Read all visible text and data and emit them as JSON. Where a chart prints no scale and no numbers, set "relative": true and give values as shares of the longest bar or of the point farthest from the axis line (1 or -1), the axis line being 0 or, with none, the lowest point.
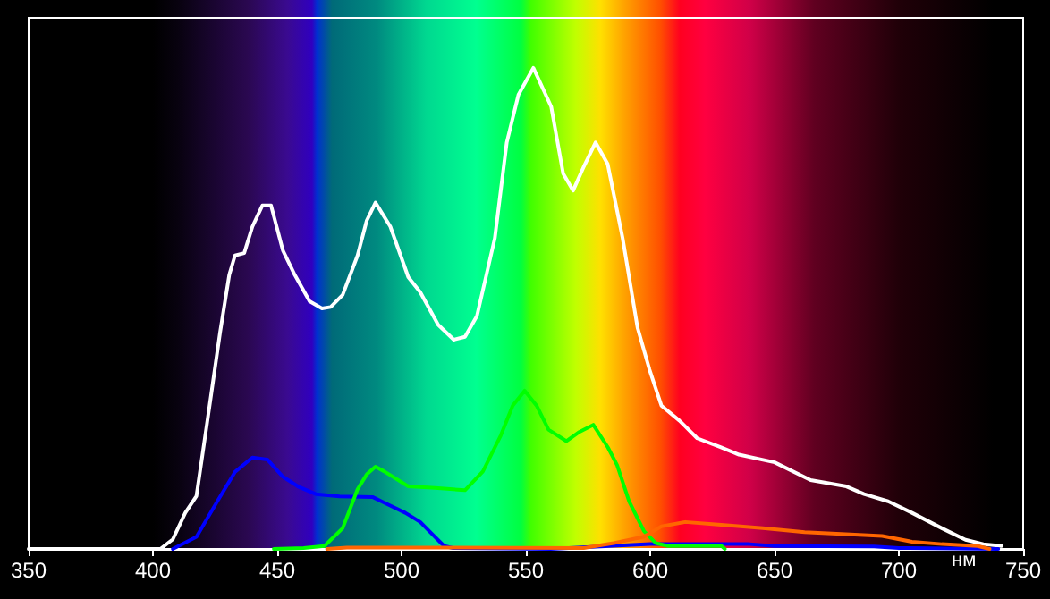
{
  "chart_data": {
    "type": "line",
    "relative": true,
    "xlabel": "нм",
    "xlim": [
      350,
      750
    ],
    "xticks": [
      350,
      400,
      450,
      500,
      550,
      600,
      650,
      700,
      750
    ],
    "tick_labels": "x",
    "marker": "none",
    "line_style": "solid",
    "series": [
      {
        "color": "#ffffff",
        "x": [
          350,
          403,
          408,
          413,
          417.5,
          422,
          427,
          430.7,
          433,
          436.7,
          440,
          444,
          447.5,
          452.3,
          457,
          463,
          468,
          471.5,
          476.3,
          482.3,
          486,
          489.5,
          495.5,
          502.7,
          507.5,
          514.7,
          521,
          525.5,
          530.3,
          537.5,
          542.3,
          547,
          553,
          560.2,
          565,
          569,
          573.3,
          578,
          582.9,
          588.9,
          594.9,
          599.7,
          604.5,
          611.7,
          618.9,
          628.5,
          635.7,
          650,
          664.5,
          678.9,
          686,
          695.7,
          705.3,
          717.3,
          726.8,
          734,
          741.3
        ],
        "values": [
          0,
          0,
          0.02,
          0.075,
          0.11,
          0.27,
          0.45,
          0.57,
          0.61,
          0.615,
          0.67,
          0.714,
          0.714,
          0.62,
          0.57,
          0.515,
          0.5,
          0.503,
          0.528,
          0.61,
          0.683,
          0.72,
          0.67,
          0.565,
          0.534,
          0.466,
          0.435,
          0.441,
          0.484,
          0.646,
          0.845,
          0.944,
          1,
          0.919,
          0.78,
          0.745,
          0.795,
          0.845,
          0.8,
          0.646,
          0.46,
          0.373,
          0.298,
          0.267,
          0.23,
          0.211,
          0.196,
          0.18,
          0.143,
          0.13,
          0.114,
          0.099,
          0.075,
          0.043,
          0.019,
          0.01,
          0.006
        ]
      },
      {
        "color": "#0000ff",
        "x": [
          408,
          417.5,
          426,
          433,
          440,
          446,
          452.3,
          458.3,
          465.5,
          475.1,
          488.3,
          494.3,
          501.5,
          507.5,
          512.3,
          517.1,
          520.7,
          560,
          600,
          640,
          650,
          690,
          700,
          740
        ],
        "values": [
          0,
          0.025,
          0.1,
          0.16,
          0.19,
          0.186,
          0.15,
          0.13,
          0.114,
          0.109,
          0.108,
          0.093,
          0.075,
          0.056,
          0.031,
          0.006,
          0.002,
          0,
          0.01,
          0.01,
          0.006,
          0.005,
          0.002,
          0
        ]
      },
      {
        "color": "#00ff00",
        "x": [
          448.6,
          460.6,
          469,
          476.3,
          482.3,
          486,
          489.5,
          493.1,
          502.7,
          513.5,
          525.5,
          532.7,
          539.9,
          544.7,
          549.5,
          554.3,
          559.1,
          566.3,
          571.1,
          577.1,
          583,
          586.7,
          591.5,
          597.5,
          602.3,
          607.1,
          628.7,
          630
        ],
        "values": [
          0,
          0.002,
          0.006,
          0.043,
          0.124,
          0.155,
          0.171,
          0.161,
          0.13,
          0.127,
          0.122,
          0.161,
          0.236,
          0.298,
          0.329,
          0.298,
          0.248,
          0.224,
          0.242,
          0.258,
          0.211,
          0.174,
          0.099,
          0.037,
          0.012,
          0.006,
          0.006,
          0
        ]
      },
      {
        "color": "#ff6600",
        "x": [
          470,
          478,
          500,
          573.2,
          585.3,
          597.3,
          604.5,
          614.1,
          628.5,
          645.3,
          662.1,
          693.3,
          705.3,
          717.3,
          731.7,
          736.5
        ],
        "values": [
          0,
          0.003,
          0.003,
          0.002,
          0.012,
          0.025,
          0.047,
          0.056,
          0.05,
          0.043,
          0.035,
          0.027,
          0.015,
          0.01,
          0.006,
          0
        ]
      }
    ]
  }
}
